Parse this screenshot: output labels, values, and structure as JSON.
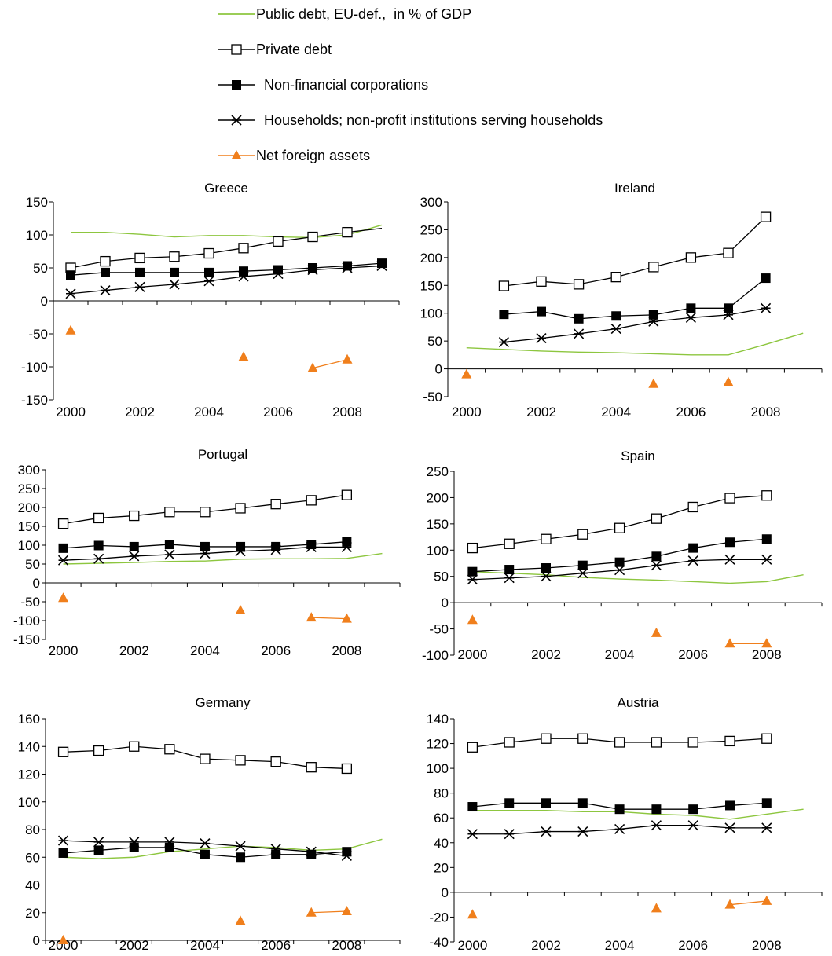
{
  "colors": {
    "public_debt": "#8dc63f",
    "private_debt": "#000000",
    "non_financial": "#000000",
    "households": "#000000",
    "net_foreign_assets": "#f07f1c"
  },
  "legend": [
    {
      "key": "public",
      "label": "Public debt, EU-def.,  in % of GDP",
      "icon": "plain-green-line-icon"
    },
    {
      "key": "private",
      "label": "Private debt",
      "icon": "open-square-marker-icon"
    },
    {
      "key": "nfc",
      "label": "  Non-financial corporations",
      "icon": "filled-square-marker-icon"
    },
    {
      "key": "hh",
      "label": "  Households; non-profit institutions serving households",
      "icon": "asterisk-marker-icon"
    },
    {
      "key": "nfa",
      "label": "Net foreign assets",
      "icon": "triangle-marker-icon"
    }
  ],
  "chart_data": [
    {
      "type": "line",
      "title": "Greece",
      "x_ticks": [
        "2000",
        "2002",
        "2004",
        "2006",
        "2008"
      ],
      "ylim": [
        -150,
        150
      ],
      "y_ticks": [
        "150",
        "100",
        "50",
        "0",
        "-50",
        "-100",
        "-150"
      ],
      "series": [
        {
          "name": "Public debt, EU-def.,  in % of GDP",
          "x": [
            2000,
            2001,
            2002,
            2003,
            2004,
            2005,
            2006,
            2007,
            2008,
            2009
          ],
          "y": [
            104,
            104,
            101,
            97,
            99,
            99,
            97,
            96,
            100,
            115
          ]
        },
        {
          "name": "Private debt",
          "x": [
            2000,
            2001,
            2002,
            2003,
            2004,
            2005,
            2006,
            2007,
            2008,
            2009
          ],
          "y": [
            50,
            60,
            65,
            67,
            72,
            80,
            90,
            97,
            104,
            110
          ]
        },
        {
          "name": "Non-financial corporations",
          "x": [
            2000,
            2001,
            2002,
            2003,
            2004,
            2005,
            2006,
            2007,
            2008,
            2009
          ],
          "y": [
            39,
            43,
            43,
            43,
            43,
            45,
            47,
            50,
            53,
            57
          ]
        },
        {
          "name": "Households; non-profit institutions serving households",
          "x": [
            2000,
            2001,
            2002,
            2003,
            2004,
            2005,
            2006,
            2007,
            2008,
            2009
          ],
          "y": [
            11,
            16,
            21,
            25,
            30,
            37,
            41,
            47,
            50,
            53
          ]
        },
        {
          "name": "Net foreign assets",
          "points": [
            [
              2000,
              -45
            ]
          ],
          "segments": [
            [
              [
                2005,
                -85
              ]
            ],
            [
              [
                2007,
                -102
              ],
              [
                2008,
                -89
              ]
            ]
          ]
        }
      ]
    },
    {
      "type": "line",
      "title": "Ireland",
      "x_ticks": [
        "2000",
        "2002",
        "2004",
        "2006",
        "2008"
      ],
      "ylim": [
        -50,
        300
      ],
      "y_ticks": [
        "300",
        "250",
        "200",
        "150",
        "100",
        "50",
        "0",
        "-50"
      ],
      "series": [
        {
          "name": "Public debt, EU-def.,  in % of GDP",
          "x": [
            2000,
            2001,
            2002,
            2003,
            2004,
            2005,
            2006,
            2007,
            2008,
            2009
          ],
          "y": [
            38,
            35,
            32,
            30,
            29,
            27,
            25,
            25,
            44,
            64
          ]
        },
        {
          "name": "Private debt",
          "x": [
            2001,
            2002,
            2003,
            2004,
            2005,
            2006,
            2007,
            2008
          ],
          "y": [
            149,
            157,
            152,
            165,
            183,
            200,
            208,
            273
          ]
        },
        {
          "name": "Non-financial corporations",
          "x": [
            2001,
            2002,
            2003,
            2004,
            2005,
            2006,
            2007,
            2008
          ],
          "y": [
            98,
            103,
            90,
            95,
            97,
            109,
            109,
            163
          ]
        },
        {
          "name": "Households; non-profit institutions serving households",
          "x": [
            2001,
            2002,
            2003,
            2004,
            2005,
            2006,
            2007,
            2008
          ],
          "y": [
            48,
            55,
            63,
            72,
            85,
            92,
            97,
            109
          ]
        },
        {
          "name": "Net foreign assets",
          "points": [
            [
              2000,
              -10
            ],
            [
              2005,
              -27
            ],
            [
              2007,
              -24
            ]
          ],
          "segments": []
        }
      ]
    },
    {
      "type": "line",
      "title": "Portugal",
      "x_ticks": [
        "2000",
        "2002",
        "2004",
        "2006",
        "2008"
      ],
      "ylim": [
        -150,
        300
      ],
      "y_ticks": [
        "300",
        "250",
        "200",
        "150",
        "100",
        "50",
        "0",
        "-50",
        "-100",
        "-150"
      ],
      "series": [
        {
          "name": "Public debt, EU-def.,  in % of GDP",
          "x": [
            2000,
            2001,
            2002,
            2003,
            2004,
            2005,
            2006,
            2007,
            2008,
            2009
          ],
          "y": [
            50,
            52,
            54,
            57,
            58,
            63,
            64,
            64,
            65,
            78
          ]
        },
        {
          "name": "Private debt",
          "x": [
            2000,
            2001,
            2002,
            2003,
            2004,
            2005,
            2006,
            2007,
            2008
          ],
          "y": [
            157,
            172,
            178,
            188,
            188,
            198,
            209,
            219,
            233
          ]
        },
        {
          "name": "Non-financial corporations",
          "x": [
            2000,
            2001,
            2002,
            2003,
            2004,
            2005,
            2006,
            2007,
            2008
          ],
          "y": [
            92,
            99,
            96,
            102,
            96,
            96,
            96,
            102,
            109
          ]
        },
        {
          "name": "Households; non-profit institutions serving households",
          "x": [
            2000,
            2001,
            2002,
            2003,
            2004,
            2005,
            2006,
            2007,
            2008
          ],
          "y": [
            60,
            64,
            71,
            75,
            78,
            84,
            88,
            95,
            95
          ]
        },
        {
          "name": "Net foreign assets",
          "points": [
            [
              2000,
              -40
            ],
            [
              2005,
              -73
            ]
          ],
          "segments": [
            [
              [
                2007,
                -92
              ],
              [
                2008,
                -95
              ]
            ]
          ]
        }
      ]
    },
    {
      "type": "line",
      "title": "Spain",
      "x_ticks": [
        "2000",
        "2002",
        "2004",
        "2006",
        "2008"
      ],
      "ylim": [
        -100,
        250
      ],
      "y_ticks": [
        "250",
        "200",
        "150",
        "100",
        "50",
        "0",
        "-50",
        "-100"
      ],
      "series": [
        {
          "name": "Public debt, EU-def.,  in % of GDP",
          "x": [
            2000,
            2001,
            2002,
            2003,
            2004,
            2005,
            2006,
            2007,
            2008,
            2009
          ],
          "y": [
            59,
            56,
            53,
            48,
            45,
            43,
            40,
            37,
            40,
            53
          ]
        },
        {
          "name": "Private debt",
          "x": [
            2000,
            2001,
            2002,
            2003,
            2004,
            2005,
            2006,
            2007,
            2008
          ],
          "y": [
            104,
            112,
            121,
            130,
            142,
            160,
            182,
            199,
            204
          ]
        },
        {
          "name": "Non-financial corporations",
          "x": [
            2000,
            2001,
            2002,
            2003,
            2004,
            2005,
            2006,
            2007,
            2008
          ],
          "y": [
            59,
            63,
            66,
            71,
            77,
            88,
            104,
            115,
            121
          ]
        },
        {
          "name": "Households; non-profit institutions serving households",
          "x": [
            2000,
            2001,
            2002,
            2003,
            2004,
            2005,
            2006,
            2007,
            2008
          ],
          "y": [
            44,
            47,
            50,
            56,
            62,
            71,
            80,
            82,
            82
          ]
        },
        {
          "name": "Net foreign assets",
          "points": [
            [
              2000,
              -33
            ],
            [
              2005,
              -58
            ]
          ],
          "segments": [
            [
              [
                2007,
                -78
              ],
              [
                2008,
                -78
              ]
            ]
          ]
        }
      ]
    },
    {
      "type": "line",
      "title": "Germany",
      "x_ticks": [
        "2000",
        "2002",
        "2004",
        "2006",
        "2008"
      ],
      "ylim": [
        0,
        160
      ],
      "y_ticks": [
        "160",
        "140",
        "120",
        "100",
        "80",
        "60",
        "40",
        "20",
        "0"
      ],
      "series": [
        {
          "name": "Public debt, EU-def.,  in % of GDP",
          "x": [
            2000,
            2001,
            2002,
            2003,
            2004,
            2005,
            2006,
            2007,
            2008,
            2009
          ],
          "y": [
            60,
            59,
            60,
            64,
            66,
            68,
            67,
            65,
            66,
            73
          ]
        },
        {
          "name": "Private debt",
          "x": [
            2000,
            2001,
            2002,
            2003,
            2004,
            2005,
            2006,
            2007,
            2008
          ],
          "y": [
            136,
            137,
            140,
            138,
            131,
            130,
            129,
            125,
            124
          ]
        },
        {
          "name": "Non-financial corporations",
          "x": [
            2000,
            2001,
            2002,
            2003,
            2004,
            2005,
            2006,
            2007,
            2008
          ],
          "y": [
            63,
            65,
            67,
            67,
            62,
            60,
            62,
            62,
            64
          ]
        },
        {
          "name": "Households; non-profit institutions serving households",
          "x": [
            2000,
            2001,
            2002,
            2003,
            2004,
            2005,
            2006,
            2007,
            2008
          ],
          "y": [
            72,
            71,
            71,
            71,
            70,
            68,
            66,
            64,
            61
          ]
        },
        {
          "name": "Net foreign assets",
          "points": [
            [
              2000,
              0
            ],
            [
              2005,
              14
            ]
          ],
          "segments": [
            [
              [
                2007,
                20
              ],
              [
                2008,
                21
              ]
            ]
          ]
        }
      ]
    },
    {
      "type": "line",
      "title": "Austria",
      "x_ticks": [
        "2000",
        "2002",
        "2004",
        "2006",
        "2008"
      ],
      "ylim": [
        -40,
        140
      ],
      "y_ticks": [
        "140",
        "120",
        "100",
        "80",
        "60",
        "40",
        "20",
        "0",
        "-20",
        "-40"
      ],
      "series": [
        {
          "name": "Public debt, EU-def.,  in % of GDP",
          "x": [
            2000,
            2001,
            2002,
            2003,
            2004,
            2005,
            2006,
            2007,
            2008,
            2009
          ],
          "y": [
            66,
            66,
            66,
            65,
            65,
            63,
            62,
            59,
            63,
            67
          ]
        },
        {
          "name": "Private debt",
          "x": [
            2000,
            2001,
            2002,
            2003,
            2004,
            2005,
            2006,
            2007,
            2008
          ],
          "y": [
            117,
            121,
            124,
            124,
            121,
            121,
            121,
            122,
            124
          ]
        },
        {
          "name": "Non-financial corporations",
          "x": [
            2000,
            2001,
            2002,
            2003,
            2004,
            2005,
            2006,
            2007,
            2008
          ],
          "y": [
            69,
            72,
            72,
            72,
            67,
            67,
            67,
            70,
            72
          ]
        },
        {
          "name": "Households; non-profit institutions serving households",
          "x": [
            2000,
            2001,
            2002,
            2003,
            2004,
            2005,
            2006,
            2007,
            2008
          ],
          "y": [
            47,
            47,
            49,
            49,
            51,
            54,
            54,
            52,
            52
          ]
        },
        {
          "name": "Net foreign assets",
          "points": [
            [
              2000,
              -18
            ],
            [
              2005,
              -13
            ]
          ],
          "segments": [
            [
              [
                2007,
                -10
              ],
              [
                2008,
                -7
              ]
            ]
          ]
        }
      ]
    }
  ]
}
